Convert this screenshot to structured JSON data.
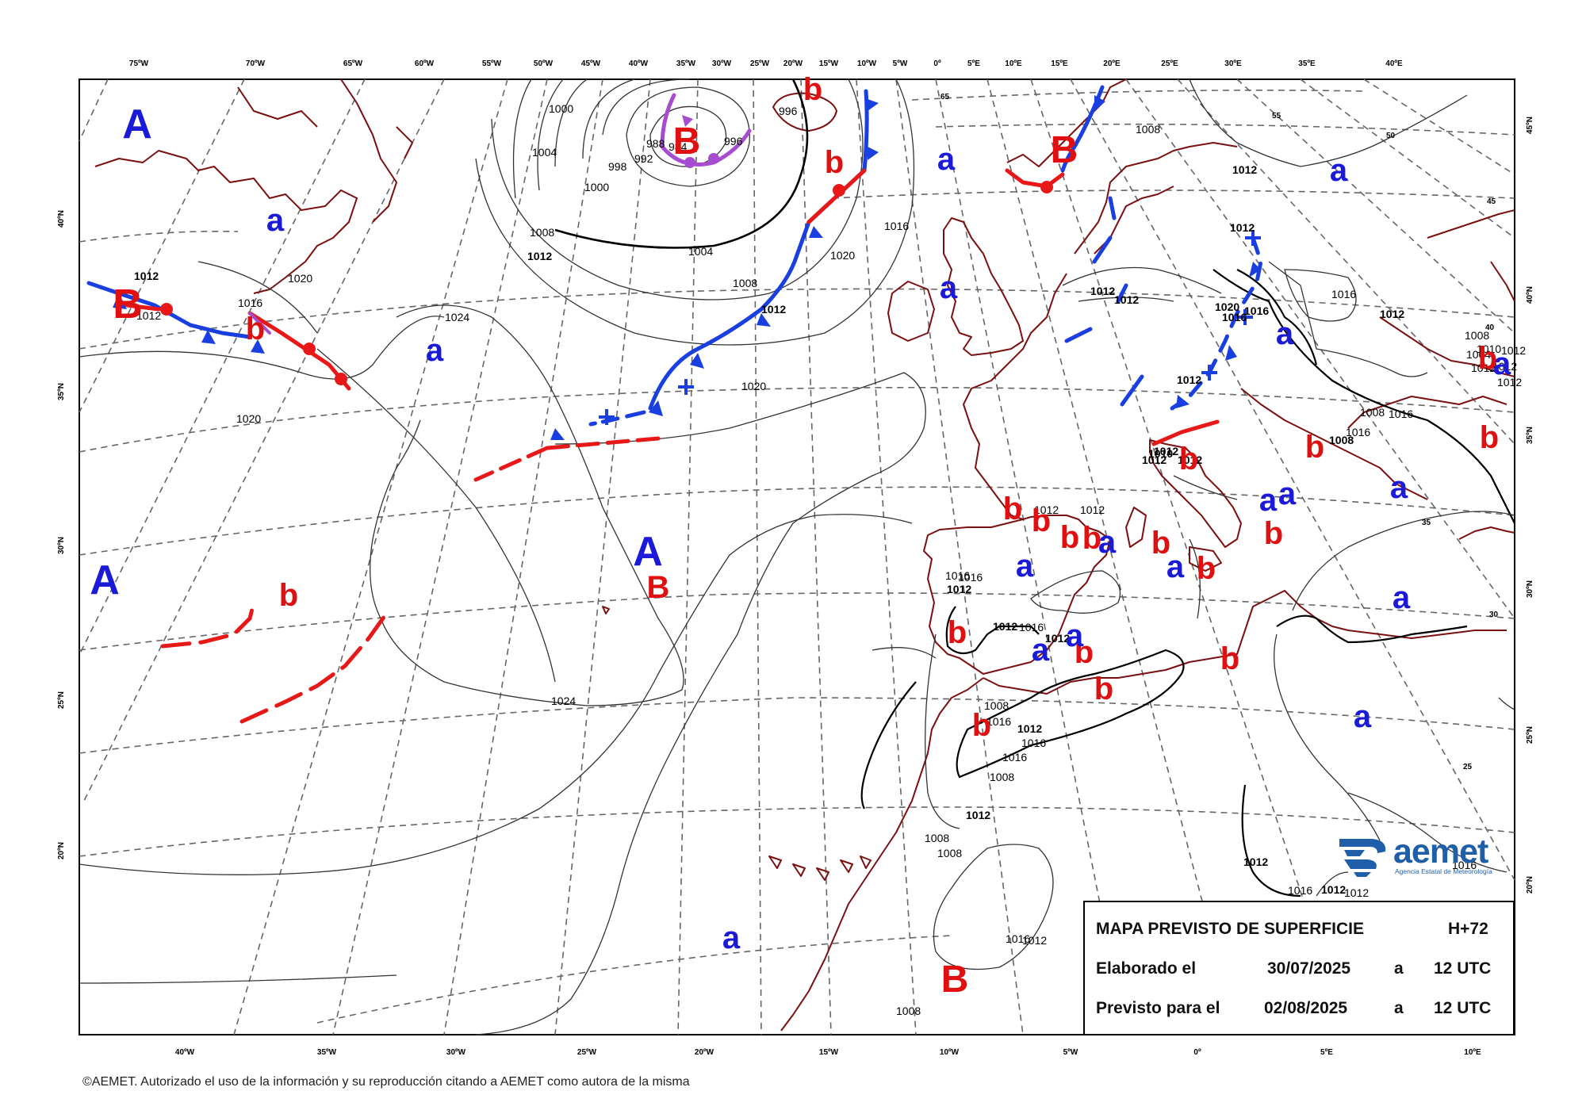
{
  "header_lon_labels": [
    "75ºW",
    "70ºW",
    "65ºW",
    "60ºW",
    "55ºW",
    "50ºW",
    "45ºW",
    "40ºW",
    "35ºW",
    "30ºW",
    "25ºW",
    "20ºW",
    "15ºW",
    "10ºW",
    "5ºW",
    "0º",
    "5ºE",
    "10ºE",
    "15ºE",
    "20ºE",
    "25ºE",
    "30ºE",
    "35ºE",
    "40ºE"
  ],
  "footer_lon_labels": [
    "40ºW",
    "35ºW",
    "30ºW",
    "25ºW",
    "20ºW",
    "15ºW",
    "10ºW",
    "5ºW",
    "0º",
    "5ºE",
    "10ºE"
  ],
  "left_lat_labels": [
    "40ºN",
    "35ºN",
    "30ºN",
    "25ºN",
    "20ºN"
  ],
  "right_lat_labels": [
    "45ºN",
    "40ºN",
    "35ºN",
    "30ºN",
    "25ºN",
    "20ºN"
  ],
  "grid_lat_marks": [
    "65",
    "55",
    "50",
    "45",
    "40",
    "35",
    "30",
    "25"
  ],
  "isobar_labels": [
    "1000",
    "1004",
    "1000",
    "998",
    "996",
    "992",
    "988",
    "984",
    "996",
    "1008",
    "1012",
    "1004",
    "1008",
    "1012",
    "1016",
    "1020",
    "1024",
    "1012",
    "1012",
    "1016",
    "1020",
    "1020",
    "1020",
    "1024",
    "1016",
    "1016",
    "1012",
    "1012",
    "1016",
    "1012",
    "1012",
    "1008",
    "1016",
    "1012",
    "1016",
    "1016",
    "1008",
    "1012",
    "1008",
    "1008",
    "1008",
    "1012",
    "1016",
    "1012",
    "1012",
    "1012",
    "1012",
    "1012",
    "1012",
    "1012",
    "1016",
    "1012",
    "1012",
    "1012",
    "1008",
    "1004",
    "1010",
    "1012",
    "1012",
    "1012",
    "1012",
    "1016",
    "1012",
    "1016",
    "1008",
    "1016",
    "1008",
    "1012",
    "1012",
    "1016",
    "1016",
    "1020",
    "1012",
    "1010",
    "1008",
    "1016"
  ],
  "pressure_symbols": [
    "A",
    "a",
    "B",
    "b",
    "B",
    "a",
    "b",
    "b",
    "B",
    "a",
    "a",
    "a",
    "a",
    "b",
    "b",
    "b",
    "a",
    "a",
    "a",
    "b",
    "b",
    "a",
    "a",
    "b",
    "b",
    "B",
    "a",
    "b",
    "b",
    "a",
    "b",
    "b",
    "b",
    "a",
    "b",
    "a",
    "b",
    "b",
    "A",
    "a",
    "b",
    "a",
    "A",
    "B",
    "b",
    "a"
  ],
  "title_box": {
    "title": "MAPA PREVISTO DE SUPERFICIE",
    "lead": "H+72",
    "elaborado_label": "Elaborado el",
    "elaborado_date": "30/07/2025",
    "a_1": "a",
    "elaborado_time": "12 UTC",
    "previsto_label": "Previsto para el",
    "previsto_date": "02/08/2025",
    "a_2": "a",
    "previsto_time": "12 UTC"
  },
  "logo": {
    "word": "aemet",
    "subtitle": "Agencia Estatal de Meteorología"
  },
  "credit": "©AEMET. Autorizado el uso de la información y su reproducción citando a AEMET como autora de la misma",
  "colors": {
    "high": "#1a1ad8",
    "low": "#e01010",
    "coast": "#7a1010",
    "cold_front": "#1a3fe0",
    "warm_front": "#e81818",
    "occluded_front": "#a64cd0",
    "isobar": "#333333",
    "graticule": "#666666"
  }
}
